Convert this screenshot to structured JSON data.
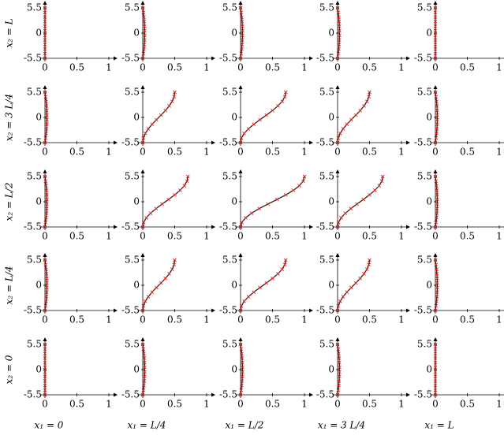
{
  "chart_data": [
    {
      "type": "line",
      "ylabel": "x₂ = L",
      "x": [
        0,
        0,
        0,
        0,
        0,
        0,
        0,
        0,
        0,
        0,
        0,
        0
      ],
      "y": [
        -5.5,
        -4.5,
        -3.5,
        -2.5,
        -1.5,
        -0.5,
        0.5,
        1.5,
        2.5,
        3.5,
        4.5,
        5.5
      ],
      "xlim": [
        0,
        1
      ],
      "ylim": [
        -5.5,
        5.5
      ],
      "xticks": [
        0,
        0.5,
        1
      ],
      "yticks": [
        -5.5,
        0,
        5.5
      ]
    },
    {
      "type": "line",
      "x": [
        0,
        0.01,
        0.018,
        0.024,
        0.028,
        0.03,
        0.03,
        0.028,
        0.024,
        0.018,
        0.01,
        0
      ],
      "y": [
        -5.5,
        -4.5,
        -3.5,
        -2.5,
        -1.5,
        -0.5,
        0.5,
        1.5,
        2.5,
        3.5,
        4.5,
        5.5
      ],
      "xlim": [
        0,
        1
      ],
      "ylim": [
        -5.5,
        5.5
      ],
      "xticks": [
        0,
        0.5,
        1
      ],
      "yticks": [
        -5.5,
        0,
        5.5
      ]
    },
    {
      "type": "line",
      "x": [
        0,
        0.01,
        0.018,
        0.024,
        0.028,
        0.03,
        0.03,
        0.028,
        0.024,
        0.018,
        0.01,
        0
      ],
      "y": [
        -5.5,
        -4.5,
        -3.5,
        -2.5,
        -1.5,
        -0.5,
        0.5,
        1.5,
        2.5,
        3.5,
        4.5,
        5.5
      ],
      "xlim": [
        0,
        1
      ],
      "ylim": [
        -5.5,
        5.5
      ],
      "xticks": [
        0,
        0.5,
        1
      ],
      "yticks": [
        -5.5,
        0,
        5.5
      ]
    },
    {
      "type": "line",
      "x": [
        0,
        0.01,
        0.018,
        0.024,
        0.028,
        0.03,
        0.03,
        0.028,
        0.024,
        0.018,
        0.01,
        0
      ],
      "y": [
        -5.5,
        -4.5,
        -3.5,
        -2.5,
        -1.5,
        -0.5,
        0.5,
        1.5,
        2.5,
        3.5,
        4.5,
        5.5
      ],
      "xlim": [
        0,
        1
      ],
      "ylim": [
        -5.5,
        5.5
      ],
      "xticks": [
        0,
        0.5,
        1
      ],
      "yticks": [
        -5.5,
        0,
        5.5
      ]
    },
    {
      "type": "line",
      "x": [
        0,
        0,
        0,
        0,
        0,
        0,
        0,
        0,
        0,
        0,
        0,
        0
      ],
      "y": [
        -5.5,
        -4.5,
        -3.5,
        -2.5,
        -1.5,
        -0.5,
        0.5,
        1.5,
        2.5,
        3.5,
        4.5,
        5.5
      ],
      "xlim": [
        0,
        1
      ],
      "ylim": [
        -5.5,
        5.5
      ],
      "xticks": [
        0,
        0.5,
        1
      ],
      "yticks": [
        -5.5,
        0,
        5.5
      ]
    },
    {
      "type": "line",
      "ylabel": "x₂ = 3 L/4",
      "x": [
        0,
        0.01,
        0.018,
        0.024,
        0.028,
        0.03,
        0.03,
        0.028,
        0.024,
        0.018,
        0.01,
        0
      ],
      "y": [
        -5.5,
        -4.5,
        -3.5,
        -2.5,
        -1.5,
        -0.5,
        0.5,
        1.5,
        2.5,
        3.5,
        4.5,
        5.5
      ],
      "xlim": [
        0,
        1
      ],
      "ylim": [
        -5.5,
        5.5
      ],
      "xticks": [
        0,
        0.5,
        1
      ],
      "yticks": [
        -5.5,
        0,
        5.5
      ]
    },
    {
      "type": "line",
      "x": [
        0,
        0.01,
        0.04,
        0.086,
        0.146,
        0.214,
        0.286,
        0.354,
        0.414,
        0.46,
        0.49,
        0.5
      ],
      "y": [
        -5.5,
        -4.5,
        -3.5,
        -2.5,
        -1.5,
        -0.5,
        0.5,
        1.5,
        2.5,
        3.5,
        4.5,
        5.5
      ],
      "xlim": [
        0,
        1
      ],
      "ylim": [
        -5.5,
        5.5
      ],
      "xticks": [
        0,
        0.5,
        1
      ],
      "yticks": [
        -5.5,
        0,
        5.5
      ]
    },
    {
      "type": "line",
      "x": [
        0,
        0.014,
        0.056,
        0.122,
        0.207,
        0.303,
        0.404,
        0.5,
        0.585,
        0.651,
        0.693,
        0.707
      ],
      "y": [
        -5.5,
        -4.5,
        -3.5,
        -2.5,
        -1.5,
        -0.5,
        0.5,
        1.5,
        2.5,
        3.5,
        4.5,
        5.5
      ],
      "xlim": [
        0,
        1
      ],
      "ylim": [
        -5.5,
        5.5
      ],
      "xticks": [
        0,
        0.5,
        1
      ],
      "yticks": [
        -5.5,
        0,
        5.5
      ]
    },
    {
      "type": "line",
      "x": [
        0,
        0.01,
        0.04,
        0.086,
        0.146,
        0.214,
        0.286,
        0.354,
        0.414,
        0.46,
        0.49,
        0.5
      ],
      "y": [
        -5.5,
        -4.5,
        -3.5,
        -2.5,
        -1.5,
        -0.5,
        0.5,
        1.5,
        2.5,
        3.5,
        4.5,
        5.5
      ],
      "xlim": [
        0,
        1
      ],
      "ylim": [
        -5.5,
        5.5
      ],
      "xticks": [
        0,
        0.5,
        1
      ],
      "yticks": [
        -5.5,
        0,
        5.5
      ]
    },
    {
      "type": "line",
      "x": [
        0,
        0.01,
        0.018,
        0.024,
        0.028,
        0.03,
        0.03,
        0.028,
        0.024,
        0.018,
        0.01,
        0
      ],
      "y": [
        -5.5,
        -4.5,
        -3.5,
        -2.5,
        -1.5,
        -0.5,
        0.5,
        1.5,
        2.5,
        3.5,
        4.5,
        5.5
      ],
      "xlim": [
        0,
        1
      ],
      "ylim": [
        -5.5,
        5.5
      ],
      "xticks": [
        0,
        0.5,
        1
      ],
      "yticks": [
        -5.5,
        0,
        5.5
      ]
    },
    {
      "type": "line",
      "ylabel": "x₂ = L/2",
      "x": [
        0,
        0.01,
        0.018,
        0.024,
        0.028,
        0.03,
        0.03,
        0.028,
        0.024,
        0.018,
        0.01,
        0
      ],
      "y": [
        -5.5,
        -4.5,
        -3.5,
        -2.5,
        -1.5,
        -0.5,
        0.5,
        1.5,
        2.5,
        3.5,
        4.5,
        5.5
      ],
      "xlim": [
        0,
        1
      ],
      "ylim": [
        -5.5,
        5.5
      ],
      "xticks": [
        0,
        0.5,
        1
      ],
      "yticks": [
        -5.5,
        0,
        5.5
      ]
    },
    {
      "type": "line",
      "x": [
        0,
        0.014,
        0.056,
        0.122,
        0.207,
        0.303,
        0.404,
        0.5,
        0.585,
        0.651,
        0.693,
        0.707
      ],
      "y": [
        -5.5,
        -4.5,
        -3.5,
        -2.5,
        -1.5,
        -0.5,
        0.5,
        1.5,
        2.5,
        3.5,
        4.5,
        5.5
      ],
      "xlim": [
        0,
        1
      ],
      "ylim": [
        -5.5,
        5.5
      ],
      "xticks": [
        0,
        0.5,
        1
      ],
      "yticks": [
        -5.5,
        0,
        5.5
      ]
    },
    {
      "type": "line",
      "x": [
        0,
        0.02,
        0.079,
        0.173,
        0.292,
        0.429,
        0.571,
        0.708,
        0.828,
        0.921,
        0.98,
        1
      ],
      "y": [
        -5.5,
        -4.5,
        -3.5,
        -2.5,
        -1.5,
        -0.5,
        0.5,
        1.5,
        2.5,
        3.5,
        4.5,
        5.5
      ],
      "xlim": [
        0,
        1
      ],
      "ylim": [
        -5.5,
        5.5
      ],
      "xticks": [
        0,
        0.5,
        1
      ],
      "yticks": [
        -5.5,
        0,
        5.5
      ]
    },
    {
      "type": "line",
      "x": [
        0,
        0.014,
        0.056,
        0.122,
        0.207,
        0.303,
        0.404,
        0.5,
        0.585,
        0.651,
        0.693,
        0.707
      ],
      "y": [
        -5.5,
        -4.5,
        -3.5,
        -2.5,
        -1.5,
        -0.5,
        0.5,
        1.5,
        2.5,
        3.5,
        4.5,
        5.5
      ],
      "xlim": [
        0,
        1
      ],
      "ylim": [
        -5.5,
        5.5
      ],
      "xticks": [
        0,
        0.5,
        1
      ],
      "yticks": [
        -5.5,
        0,
        5.5
      ]
    },
    {
      "type": "line",
      "x": [
        0,
        0.01,
        0.018,
        0.024,
        0.028,
        0.03,
        0.03,
        0.028,
        0.024,
        0.018,
        0.01,
        0
      ],
      "y": [
        -5.5,
        -4.5,
        -3.5,
        -2.5,
        -1.5,
        -0.5,
        0.5,
        1.5,
        2.5,
        3.5,
        4.5,
        5.5
      ],
      "xlim": [
        0,
        1
      ],
      "ylim": [
        -5.5,
        5.5
      ],
      "xticks": [
        0,
        0.5,
        1
      ],
      "yticks": [
        -5.5,
        0,
        5.5
      ]
    },
    {
      "type": "line",
      "ylabel": "x₂ = L/4",
      "x": [
        0,
        0.01,
        0.018,
        0.024,
        0.028,
        0.03,
        0.03,
        0.028,
        0.024,
        0.018,
        0.01,
        0
      ],
      "y": [
        -5.5,
        -4.5,
        -3.5,
        -2.5,
        -1.5,
        -0.5,
        0.5,
        1.5,
        2.5,
        3.5,
        4.5,
        5.5
      ],
      "xlim": [
        0,
        1
      ],
      "ylim": [
        -5.5,
        5.5
      ],
      "xticks": [
        0,
        0.5,
        1
      ],
      "yticks": [
        -5.5,
        0,
        5.5
      ]
    },
    {
      "type": "line",
      "x": [
        0,
        0.01,
        0.04,
        0.086,
        0.146,
        0.214,
        0.286,
        0.354,
        0.414,
        0.46,
        0.49,
        0.5
      ],
      "y": [
        -5.5,
        -4.5,
        -3.5,
        -2.5,
        -1.5,
        -0.5,
        0.5,
        1.5,
        2.5,
        3.5,
        4.5,
        5.5
      ],
      "xlim": [
        0,
        1
      ],
      "ylim": [
        -5.5,
        5.5
      ],
      "xticks": [
        0,
        0.5,
        1
      ],
      "yticks": [
        -5.5,
        0,
        5.5
      ]
    },
    {
      "type": "line",
      "x": [
        0,
        0.014,
        0.056,
        0.122,
        0.207,
        0.303,
        0.404,
        0.5,
        0.585,
        0.651,
        0.693,
        0.707
      ],
      "y": [
        -5.5,
        -4.5,
        -3.5,
        -2.5,
        -1.5,
        -0.5,
        0.5,
        1.5,
        2.5,
        3.5,
        4.5,
        5.5
      ],
      "xlim": [
        0,
        1
      ],
      "ylim": [
        -5.5,
        5.5
      ],
      "xticks": [
        0,
        0.5,
        1
      ],
      "yticks": [
        -5.5,
        0,
        5.5
      ]
    },
    {
      "type": "line",
      "x": [
        0,
        0.01,
        0.04,
        0.086,
        0.146,
        0.214,
        0.286,
        0.354,
        0.414,
        0.46,
        0.49,
        0.5
      ],
      "y": [
        -5.5,
        -4.5,
        -3.5,
        -2.5,
        -1.5,
        -0.5,
        0.5,
        1.5,
        2.5,
        3.5,
        4.5,
        5.5
      ],
      "xlim": [
        0,
        1
      ],
      "ylim": [
        -5.5,
        5.5
      ],
      "xticks": [
        0,
        0.5,
        1
      ],
      "yticks": [
        -5.5,
        0,
        5.5
      ]
    },
    {
      "type": "line",
      "x": [
        0,
        0.01,
        0.018,
        0.024,
        0.028,
        0.03,
        0.03,
        0.028,
        0.024,
        0.018,
        0.01,
        0
      ],
      "y": [
        -5.5,
        -4.5,
        -3.5,
        -2.5,
        -1.5,
        -0.5,
        0.5,
        1.5,
        2.5,
        3.5,
        4.5,
        5.5
      ],
      "xlim": [
        0,
        1
      ],
      "ylim": [
        -5.5,
        5.5
      ],
      "xticks": [
        0,
        0.5,
        1
      ],
      "yticks": [
        -5.5,
        0,
        5.5
      ]
    },
    {
      "type": "line",
      "ylabel": "x₂ = 0",
      "xlabel": "x₁ = 0",
      "x": [
        0,
        0,
        0,
        0,
        0,
        0,
        0,
        0,
        0,
        0,
        0,
        0
      ],
      "y": [
        -5.5,
        -4.5,
        -3.5,
        -2.5,
        -1.5,
        -0.5,
        0.5,
        1.5,
        2.5,
        3.5,
        4.5,
        5.5
      ],
      "xlim": [
        0,
        1
      ],
      "ylim": [
        -5.5,
        5.5
      ],
      "xticks": [
        0,
        0.5,
        1
      ],
      "yticks": [
        -5.5,
        0,
        5.5
      ]
    },
    {
      "type": "line",
      "xlabel": "x₁ = L/4",
      "x": [
        0,
        0.01,
        0.018,
        0.024,
        0.028,
        0.03,
        0.03,
        0.028,
        0.024,
        0.018,
        0.01,
        0
      ],
      "y": [
        -5.5,
        -4.5,
        -3.5,
        -2.5,
        -1.5,
        -0.5,
        0.5,
        1.5,
        2.5,
        3.5,
        4.5,
        5.5
      ],
      "xlim": [
        0,
        1
      ],
      "ylim": [
        -5.5,
        5.5
      ],
      "xticks": [
        0,
        0.5,
        1
      ],
      "yticks": [
        -5.5,
        0,
        5.5
      ]
    },
    {
      "type": "line",
      "xlabel": "x₁ = L/2",
      "x": [
        0,
        0.01,
        0.018,
        0.024,
        0.028,
        0.03,
        0.03,
        0.028,
        0.024,
        0.018,
        0.01,
        0
      ],
      "y": [
        -5.5,
        -4.5,
        -3.5,
        -2.5,
        -1.5,
        -0.5,
        0.5,
        1.5,
        2.5,
        3.5,
        4.5,
        5.5
      ],
      "xlim": [
        0,
        1
      ],
      "ylim": [
        -5.5,
        5.5
      ],
      "xticks": [
        0,
        0.5,
        1
      ],
      "yticks": [
        -5.5,
        0,
        5.5
      ]
    },
    {
      "type": "line",
      "xlabel": "x₁ = 3 L/4",
      "x": [
        0,
        0.01,
        0.018,
        0.024,
        0.028,
        0.03,
        0.03,
        0.028,
        0.024,
        0.018,
        0.01,
        0
      ],
      "y": [
        -5.5,
        -4.5,
        -3.5,
        -2.5,
        -1.5,
        -0.5,
        0.5,
        1.5,
        2.5,
        3.5,
        4.5,
        5.5
      ],
      "xlim": [
        0,
        1
      ],
      "ylim": [
        -5.5,
        5.5
      ],
      "xticks": [
        0,
        0.5,
        1
      ],
      "yticks": [
        -5.5,
        0,
        5.5
      ]
    },
    {
      "type": "line",
      "xlabel": "x₁ = L",
      "x": [
        0,
        0,
        0,
        0,
        0,
        0,
        0,
        0,
        0,
        0,
        0,
        0
      ],
      "y": [
        -5.5,
        -4.5,
        -3.5,
        -2.5,
        -1.5,
        -0.5,
        0.5,
        1.5,
        2.5,
        3.5,
        4.5,
        5.5
      ],
      "xlim": [
        0,
        1
      ],
      "ylim": [
        -5.5,
        5.5
      ],
      "xticks": [
        0,
        0.5,
        1
      ],
      "yticks": [
        -5.5,
        0,
        5.5
      ]
    }
  ]
}
